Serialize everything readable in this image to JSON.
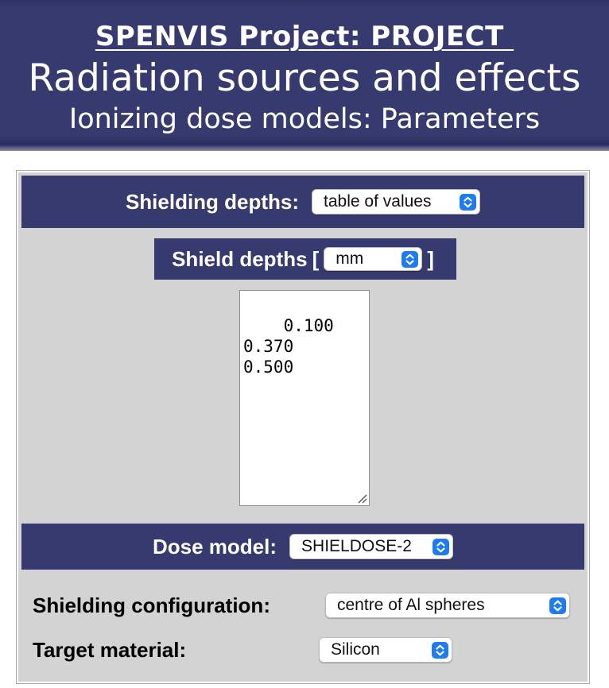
{
  "header": {
    "project_title": "SPENVIS Project: PROJECT ",
    "main_title": "Radiation sources and effects",
    "sub_title": "Ionizing dose models: Parameters"
  },
  "shielding_depths": {
    "label": "Shielding depths:",
    "selected": "table of values"
  },
  "shield_depths": {
    "label": "Shield depths",
    "bracket_open": "[",
    "bracket_close": "]",
    "unit_selected": "mm",
    "values_text": "0.100\n0.370\n0.500"
  },
  "dose_model": {
    "label": "Dose model:",
    "selected": "SHIELDOSE-2"
  },
  "shielding_configuration": {
    "label": "Shielding configuration:",
    "selected": "centre of Al spheres"
  },
  "target_material": {
    "label": "Target material:",
    "selected": "Silicon"
  },
  "colors": {
    "header_bg": "#363a6e",
    "panel_bg": "#d3d3d3",
    "select_arrow": "#1e7bf0"
  },
  "icons": {
    "select_arrow": "chevron-updown-icon",
    "resize": "resize-grip-icon"
  }
}
